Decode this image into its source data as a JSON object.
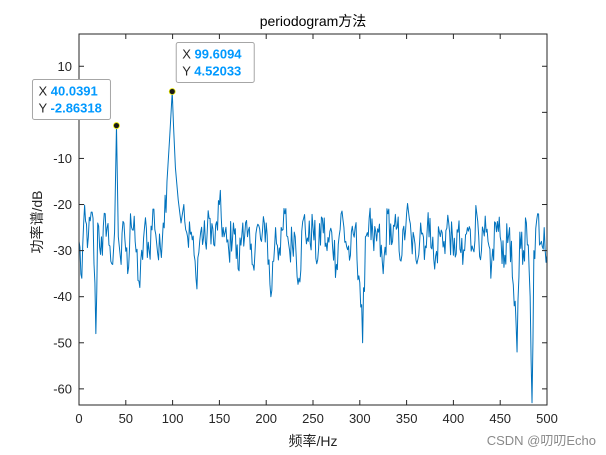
{
  "chart_data": {
    "type": "line",
    "title": "periodogram方法",
    "xlabel": "频率/Hz",
    "ylabel": "功率谱/dB",
    "xlim": [
      0,
      500
    ],
    "ylim": [
      -63.5,
      17
    ],
    "xticks": [
      0,
      50,
      100,
      150,
      200,
      250,
      300,
      350,
      400,
      450,
      500
    ],
    "yticks": [
      -60,
      -50,
      -40,
      -30,
      -20,
      -10,
      0,
      10
    ],
    "grid": false,
    "series_color": "#0072bd",
    "keypoints": [
      [
        0,
        -28
      ],
      [
        3,
        -36
      ],
      [
        5,
        -24
      ],
      [
        10,
        -27
      ],
      [
        15,
        -23
      ],
      [
        18,
        -48
      ],
      [
        20,
        -24
      ],
      [
        25,
        -31
      ],
      [
        28,
        -22
      ],
      [
        33,
        -29
      ],
      [
        36,
        -33
      ],
      [
        38,
        -26
      ],
      [
        40.0391,
        -2.86318
      ],
      [
        42,
        -27
      ],
      [
        45,
        -33
      ],
      [
        48,
        -24
      ],
      [
        52,
        -35
      ],
      [
        55,
        -22
      ],
      [
        60,
        -28
      ],
      [
        65,
        -38
      ],
      [
        70,
        -25
      ],
      [
        75,
        -30
      ],
      [
        80,
        -21
      ],
      [
        85,
        -32
      ],
      [
        90,
        -24
      ],
      [
        94,
        -15
      ],
      [
        97,
        -5
      ],
      [
        99.6094,
        4.52033
      ],
      [
        101,
        -3
      ],
      [
        103,
        -12
      ],
      [
        106,
        -19
      ],
      [
        109,
        -24
      ],
      [
        112,
        -20
      ],
      [
        116,
        -27
      ],
      [
        120,
        -26
      ],
      [
        125,
        -36
      ],
      [
        130,
        -26
      ],
      [
        135,
        -28
      ],
      [
        140,
        -23
      ],
      [
        145,
        -29
      ],
      [
        150,
        -20
      ],
      [
        155,
        -27
      ],
      [
        160,
        -30
      ],
      [
        165,
        -24
      ],
      [
        170,
        -34
      ],
      [
        175,
        -24
      ],
      [
        180,
        -27
      ],
      [
        185,
        -33
      ],
      [
        190,
        -25
      ],
      [
        195,
        -28
      ],
      [
        200,
        -24
      ],
      [
        205,
        -40
      ],
      [
        210,
        -25
      ],
      [
        215,
        -31
      ],
      [
        220,
        -22
      ],
      [
        225,
        -30
      ],
      [
        230,
        -26
      ],
      [
        235,
        -36
      ],
      [
        240,
        -23
      ],
      [
        245,
        -28
      ],
      [
        250,
        -25
      ],
      [
        255,
        -32
      ],
      [
        260,
        -23
      ],
      [
        265,
        -30
      ],
      [
        270,
        -26
      ],
      [
        275,
        -33
      ],
      [
        280,
        -22
      ],
      [
        285,
        -28
      ],
      [
        290,
        -31
      ],
      [
        295,
        -25
      ],
      [
        300,
        -37
      ],
      [
        303,
        -50
      ],
      [
        306,
        -27
      ],
      [
        310,
        -23
      ],
      [
        315,
        -30
      ],
      [
        320,
        -26
      ],
      [
        325,
        -35
      ],
      [
        330,
        -22
      ],
      [
        335,
        -28
      ],
      [
        340,
        -25
      ],
      [
        345,
        -31
      ],
      [
        350,
        -22
      ],
      [
        355,
        -27
      ],
      [
        360,
        -32
      ],
      [
        365,
        -24
      ],
      [
        370,
        -29
      ],
      [
        375,
        -23
      ],
      [
        380,
        -34
      ],
      [
        385,
        -26
      ],
      [
        390,
        -28
      ],
      [
        395,
        -24
      ],
      [
        400,
        -31
      ],
      [
        405,
        -26
      ],
      [
        410,
        -33
      ],
      [
        415,
        -25
      ],
      [
        420,
        -29
      ],
      [
        425,
        -22
      ],
      [
        430,
        -30
      ],
      [
        435,
        -26
      ],
      [
        440,
        -36
      ],
      [
        445,
        -24
      ],
      [
        450,
        -27
      ],
      [
        455,
        -31
      ],
      [
        460,
        -25
      ],
      [
        465,
        -42
      ],
      [
        468,
        -52
      ],
      [
        471,
        -26
      ],
      [
        475,
        -30
      ],
      [
        478,
        -24
      ],
      [
        482,
        -40
      ],
      [
        484,
        -63
      ],
      [
        486,
        -30
      ],
      [
        490,
        -22
      ],
      [
        494,
        -28
      ],
      [
        497,
        -25
      ],
      [
        500,
        -31
      ]
    ],
    "datatips": [
      {
        "x_label": "X",
        "y_label": "Y",
        "x_value": "40.0391",
        "y_value": "-2.86318",
        "x": 40.0391,
        "y": -2.86318
      },
      {
        "x_label": "X",
        "y_label": "Y",
        "x_value": "99.6094",
        "y_value": "4.52033",
        "x": 99.6094,
        "y": 4.52033
      }
    ]
  },
  "watermark": "CSDN @叨叨Echo"
}
